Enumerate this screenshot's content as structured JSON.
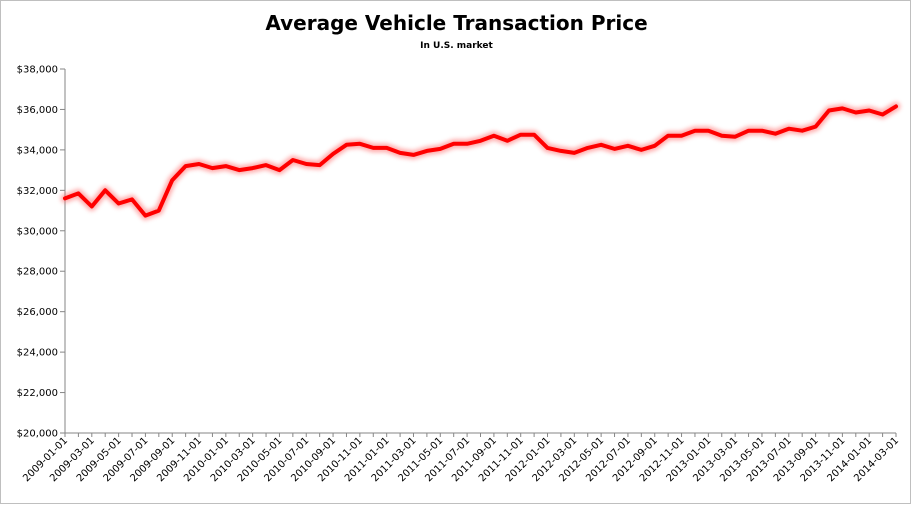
{
  "chart_data": {
    "type": "line",
    "title": "Average Vehicle Transaction Price",
    "subtitle": "In U.S. market",
    "xlabel": "",
    "ylabel": "",
    "ylim": [
      20000,
      38000
    ],
    "y_ticks": [
      20000,
      22000,
      24000,
      26000,
      28000,
      30000,
      32000,
      34000,
      36000,
      38000
    ],
    "y_tick_labels": [
      "$20,000",
      "$22,000",
      "$24,000",
      "$26,000",
      "$28,000",
      "$30,000",
      "$32,000",
      "$34,000",
      "$36,000",
      "$38,000"
    ],
    "x_tick_labels": [
      "2009-01-01",
      "2009-03-01",
      "2009-05-01",
      "2009-07-01",
      "2009-09-01",
      "2009-11-01",
      "2010-01-01",
      "2010-03-01",
      "2010-05-01",
      "2010-07-01",
      "2010-09-01",
      "2010-11-01",
      "2011-01-01",
      "2011-03-01",
      "2011-05-01",
      "2011-07-01",
      "2011-09-01",
      "2011-11-01",
      "2012-01-01",
      "2012-03-01",
      "2012-05-01",
      "2012-07-01",
      "2012-09-01",
      "2012-11-01",
      "2013-01-01",
      "2013-03-01",
      "2013-05-01",
      "2013-07-01",
      "2013-09-01",
      "2013-11-01",
      "2014-01-01",
      "2014-03-01"
    ],
    "grid": false,
    "line_color": "#ff0000",
    "series": [
      {
        "x": [
          "2009-01-01",
          "2009-02-01",
          "2009-03-01",
          "2009-04-01",
          "2009-05-01",
          "2009-06-01",
          "2009-07-01",
          "2009-08-01",
          "2009-09-01",
          "2009-10-01",
          "2009-11-01",
          "2009-12-01",
          "2010-01-01",
          "2010-02-01",
          "2010-03-01",
          "2010-04-01",
          "2010-05-01",
          "2010-06-01",
          "2010-07-01",
          "2010-08-01",
          "2010-09-01",
          "2010-10-01",
          "2010-11-01",
          "2010-12-01",
          "2011-01-01",
          "2011-02-01",
          "2011-03-01",
          "2011-04-01",
          "2011-05-01",
          "2011-06-01",
          "2011-07-01",
          "2011-08-01",
          "2011-09-01",
          "2011-10-01",
          "2011-11-01",
          "2011-12-01",
          "2012-01-01",
          "2012-02-01",
          "2012-03-01",
          "2012-04-01",
          "2012-05-01",
          "2012-06-01",
          "2012-07-01",
          "2012-08-01",
          "2012-09-01",
          "2012-10-01",
          "2012-11-01",
          "2012-12-01",
          "2013-01-01",
          "2013-02-01",
          "2013-03-01",
          "2013-04-01",
          "2013-05-01",
          "2013-06-01",
          "2013-07-01",
          "2013-08-01",
          "2013-09-01",
          "2013-10-01",
          "2013-11-01",
          "2013-12-01",
          "2014-01-01",
          "2014-02-01",
          "2014-03-01"
        ],
        "values": [
          31600,
          31850,
          31200,
          32000,
          31350,
          31550,
          30750,
          31000,
          32500,
          33200,
          33300,
          33100,
          33200,
          33000,
          33100,
          33250,
          33000,
          33500,
          33300,
          33250,
          33800,
          34250,
          34300,
          34100,
          34100,
          33850,
          33750,
          33950,
          34050,
          34300,
          34300,
          34450,
          34700,
          34450,
          34750,
          34750,
          34100,
          33950,
          33850,
          34100,
          34250,
          34050,
          34200,
          34000,
          34200,
          34700,
          34700,
          34950,
          34950,
          34700,
          34650,
          34950,
          34950,
          34800,
          35050,
          34950,
          35150,
          35950,
          36050,
          35850,
          35950,
          35750,
          36150
        ]
      }
    ]
  }
}
